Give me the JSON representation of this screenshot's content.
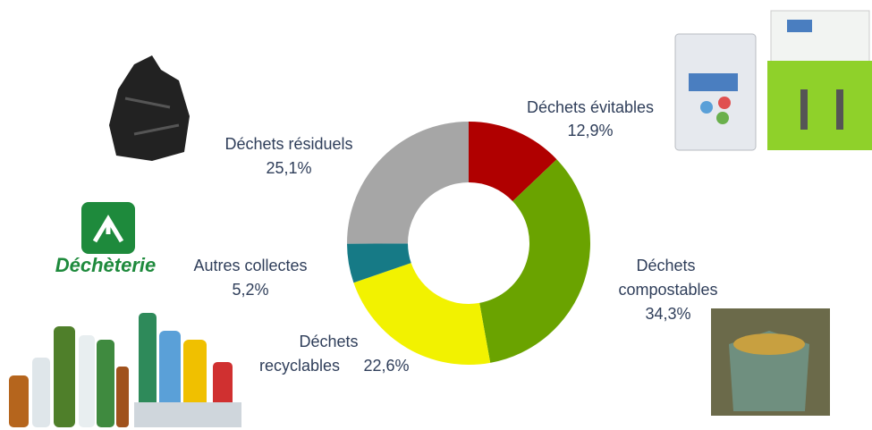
{
  "chart_data": {
    "type": "donut",
    "categories": [
      "Déchets évitables",
      "Déchets compostables",
      "Déchets recyclables",
      "Autres collectes",
      "Déchets résiduels"
    ],
    "values": [
      12.9,
      34.3,
      22.6,
      5.2,
      25.1
    ],
    "value_labels": [
      "12,9%",
      "34,3%",
      "22,6%",
      "5,2%",
      "25,1%"
    ],
    "colors": [
      "#b00000",
      "#6aa300",
      "#f2f200",
      "#167a86",
      "#a6a6a6"
    ]
  },
  "logo": {
    "text": "Déchèterie"
  }
}
